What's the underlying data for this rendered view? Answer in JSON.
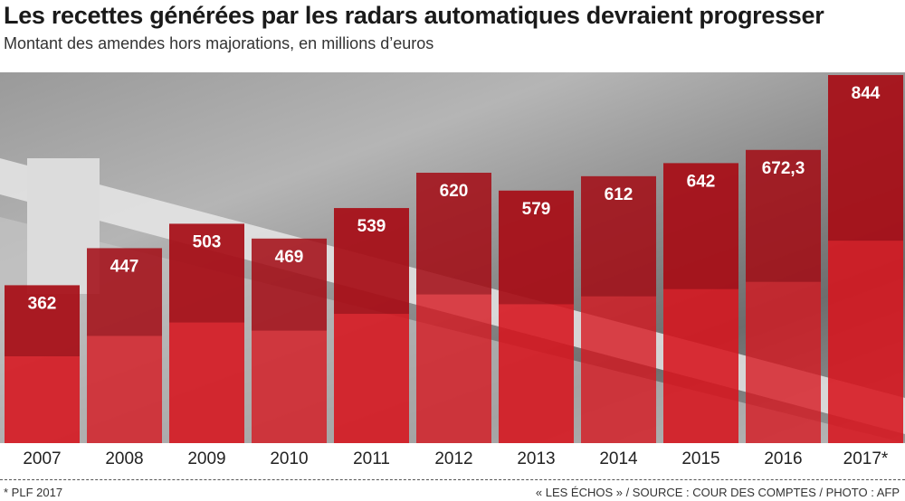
{
  "chart_data": {
    "type": "bar",
    "title": "Les recettes générées par les radars automatiques devraient progresser",
    "subtitle": "Montant des amendes hors majorations, en millions d’euros",
    "categories": [
      "2007",
      "2008",
      "2009",
      "2010",
      "2011",
      "2012",
      "2013",
      "2014",
      "2015",
      "2016",
      "2017*"
    ],
    "values": [
      362,
      447,
      503,
      469,
      539,
      620,
      579,
      612,
      642,
      672.3,
      844
    ],
    "labels": [
      "362",
      "447",
      "503",
      "469",
      "539",
      "620",
      "579",
      "612",
      "642",
      "672,3",
      "844"
    ],
    "ylim": [
      0,
      844
    ],
    "grid": false,
    "bar_color": "#d7141e",
    "footnote": "* PLF 2017",
    "credit": "« LES ÉCHOS » / SOURCE : COUR DES COMPTES / PHOTO : AFP"
  }
}
